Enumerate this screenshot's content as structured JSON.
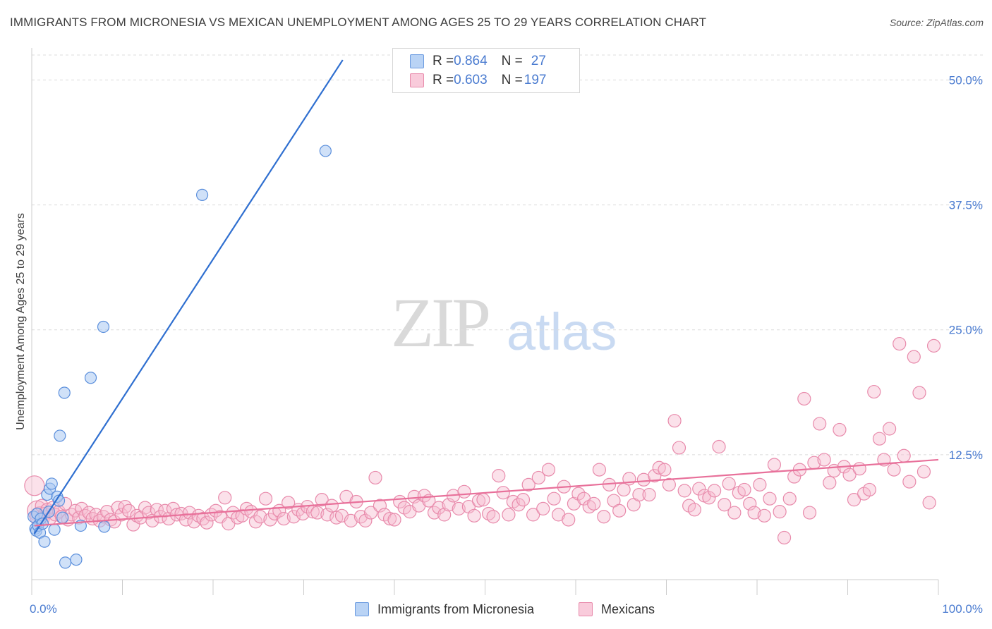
{
  "header": {
    "title": "IMMIGRANTS FROM MICRONESIA VS MEXICAN UNEMPLOYMENT AMONG AGES 25 TO 29 YEARS CORRELATION CHART",
    "source": "Source: ZipAtlas.com"
  },
  "watermark": {
    "zip": "ZIP",
    "atlas": "atlas"
  },
  "legend": {
    "rows": [
      {
        "r_label": "R = ",
        "r_value": "0.864",
        "n_label": "N = ",
        "n_value": "27",
        "color": "#a9c8f2",
        "stroke": "#6b9be0"
      },
      {
        "r_label": "R = ",
        "r_value": "0.603",
        "n_label": "N = ",
        "n_value": "197",
        "color": "#f7bcd0",
        "stroke": "#e88aab"
      }
    ]
  },
  "bottom_legend": {
    "series1": "Immigrants from Micronesia",
    "series2": "Mexicans"
  },
  "chart_data": {
    "type": "scatter",
    "title": "IMMIGRANTS FROM MICRONESIA VS MEXICAN UNEMPLOYMENT AMONG AGES 25 TO 29 YEARS CORRELATION CHART",
    "xlabel": "",
    "ylabel": "Unemployment Among Ages 25 to 29 years",
    "xlim": [
      0,
      100
    ],
    "ylim": [
      0,
      52.5
    ],
    "x_tick_labels": [
      "0.0%",
      "100.0%"
    ],
    "y_ticks": [
      12.5,
      25.0,
      37.5,
      50.0
    ],
    "y_tick_labels": [
      "12.5%",
      "25.0%",
      "37.5%",
      "50.0%"
    ],
    "grid": true,
    "series": [
      {
        "name": "Immigrants from Micronesia",
        "color": "#a9c8f2",
        "stroke": "#5b8fdc",
        "line_color": "#2f6fd0",
        "trend": {
          "x0": 0.3,
          "y0": 4.6,
          "x1": 34.3,
          "y1": 52.0
        },
        "points": [
          [
            0.2,
            6.3
          ],
          [
            0.4,
            5.1
          ],
          [
            0.5,
            4.9
          ],
          [
            0.6,
            6.6
          ],
          [
            0.7,
            5.4
          ],
          [
            0.9,
            4.7
          ],
          [
            1.0,
            6.1
          ],
          [
            1.2,
            5.6
          ],
          [
            1.4,
            3.8
          ],
          [
            1.7,
            8.5
          ],
          [
            1.9,
            6.8
          ],
          [
            2.0,
            9.1
          ],
          [
            2.2,
            9.6
          ],
          [
            2.5,
            5.0
          ],
          [
            2.8,
            8.3
          ],
          [
            3.0,
            7.9
          ],
          [
            3.1,
            14.4
          ],
          [
            3.4,
            6.2
          ],
          [
            3.6,
            18.7
          ],
          [
            3.7,
            1.7
          ],
          [
            4.9,
            2.0
          ],
          [
            5.4,
            5.4
          ],
          [
            6.5,
            20.2
          ],
          [
            7.9,
            25.3
          ],
          [
            8.0,
            5.3
          ],
          [
            18.8,
            38.5
          ],
          [
            32.4,
            42.9
          ]
        ]
      },
      {
        "name": "Mexicans",
        "color": "#f7bcd0",
        "stroke": "#e88aab",
        "line_color": "#e8709a",
        "trend": {
          "x0": 0.3,
          "y0": 5.4,
          "x1": 100,
          "y1": 12.0
        },
        "points": [
          [
            0.3,
            9.4
          ],
          [
            0.6,
            6.9
          ],
          [
            0.9,
            6.3
          ],
          [
            1.1,
            7.4
          ],
          [
            1.4,
            6.6
          ],
          [
            1.7,
            7.0
          ],
          [
            2.0,
            6.1
          ],
          [
            2.3,
            7.2
          ],
          [
            2.6,
            6.5
          ],
          [
            3.0,
            6.8
          ],
          [
            3.3,
            6.3
          ],
          [
            3.7,
            7.6
          ],
          [
            4.0,
            6.0
          ],
          [
            4.4,
            6.5
          ],
          [
            4.8,
            6.9
          ],
          [
            5.2,
            6.2
          ],
          [
            5.5,
            7.1
          ],
          [
            5.9,
            6.4
          ],
          [
            6.3,
            6.7
          ],
          [
            6.7,
            6.1
          ],
          [
            7.1,
            6.5
          ],
          [
            7.5,
            5.9
          ],
          [
            7.9,
            6.3
          ],
          [
            8.3,
            6.8
          ],
          [
            8.7,
            6.0
          ],
          [
            9.1,
            5.8
          ],
          [
            9.5,
            7.2
          ],
          [
            9.9,
            6.5
          ],
          [
            10.3,
            7.3
          ],
          [
            10.7,
            6.9
          ],
          [
            11.2,
            5.5
          ],
          [
            11.6,
            6.4
          ],
          [
            12.0,
            6.2
          ],
          [
            12.5,
            7.2
          ],
          [
            12.9,
            6.7
          ],
          [
            13.3,
            5.9
          ],
          [
            13.8,
            7.0
          ],
          [
            14.2,
            6.3
          ],
          [
            14.7,
            6.9
          ],
          [
            15.1,
            6.1
          ],
          [
            15.6,
            7.1
          ],
          [
            16.0,
            6.5
          ],
          [
            16.5,
            6.6
          ],
          [
            17.0,
            6.0
          ],
          [
            17.4,
            6.7
          ],
          [
            17.9,
            5.8
          ],
          [
            18.4,
            6.4
          ],
          [
            18.9,
            6.1
          ],
          [
            19.3,
            5.7
          ],
          [
            19.8,
            6.5
          ],
          [
            20.3,
            6.9
          ],
          [
            20.8,
            6.3
          ],
          [
            21.3,
            8.2
          ],
          [
            21.7,
            5.6
          ],
          [
            22.2,
            6.7
          ],
          [
            22.7,
            6.2
          ],
          [
            23.2,
            6.4
          ],
          [
            23.7,
            7.1
          ],
          [
            24.2,
            6.8
          ],
          [
            24.7,
            5.8
          ],
          [
            25.2,
            6.3
          ],
          [
            25.8,
            8.1
          ],
          [
            26.3,
            6.0
          ],
          [
            26.8,
            6.6
          ],
          [
            27.3,
            6.9
          ],
          [
            27.8,
            6.1
          ],
          [
            28.3,
            7.7
          ],
          [
            28.9,
            6.3
          ],
          [
            29.4,
            7.0
          ],
          [
            29.9,
            6.6
          ],
          [
            30.4,
            7.3
          ],
          [
            31.0,
            6.8
          ],
          [
            31.5,
            6.7
          ],
          [
            32.0,
            8.0
          ],
          [
            32.6,
            6.5
          ],
          [
            33.1,
            7.4
          ],
          [
            33.6,
            6.2
          ],
          [
            34.2,
            6.4
          ],
          [
            34.7,
            8.3
          ],
          [
            35.2,
            5.9
          ],
          [
            35.8,
            7.8
          ],
          [
            36.3,
            6.3
          ],
          [
            36.8,
            5.9
          ],
          [
            37.4,
            6.7
          ],
          [
            37.9,
            10.2
          ],
          [
            38.4,
            7.4
          ],
          [
            38.9,
            6.5
          ],
          [
            39.5,
            6.1
          ],
          [
            40.0,
            6.0
          ],
          [
            40.6,
            7.8
          ],
          [
            41.1,
            7.2
          ],
          [
            41.7,
            6.8
          ],
          [
            42.2,
            8.3
          ],
          [
            42.7,
            7.4
          ],
          [
            43.3,
            8.4
          ],
          [
            43.8,
            7.9
          ],
          [
            44.4,
            6.7
          ],
          [
            44.9,
            7.2
          ],
          [
            45.5,
            6.5
          ],
          [
            46.0,
            7.5
          ],
          [
            46.5,
            8.4
          ],
          [
            47.1,
            7.1
          ],
          [
            47.7,
            8.8
          ],
          [
            48.2,
            7.3
          ],
          [
            48.8,
            6.4
          ],
          [
            49.3,
            7.9
          ],
          [
            49.8,
            8.0
          ],
          [
            50.4,
            6.6
          ],
          [
            50.9,
            6.3
          ],
          [
            51.5,
            10.4
          ],
          [
            52.0,
            8.7
          ],
          [
            52.6,
            6.5
          ],
          [
            53.1,
            7.8
          ],
          [
            53.7,
            7.5
          ],
          [
            54.2,
            8.0
          ],
          [
            54.8,
            9.5
          ],
          [
            55.3,
            6.5
          ],
          [
            55.9,
            10.2
          ],
          [
            56.4,
            7.1
          ],
          [
            57.0,
            11.0
          ],
          [
            57.6,
            8.1
          ],
          [
            58.1,
            6.5
          ],
          [
            58.7,
            9.3
          ],
          [
            59.2,
            6.0
          ],
          [
            59.8,
            7.6
          ],
          [
            60.3,
            8.6
          ],
          [
            60.9,
            8.1
          ],
          [
            61.5,
            7.3
          ],
          [
            62.0,
            7.6
          ],
          [
            62.6,
            11.0
          ],
          [
            63.1,
            6.3
          ],
          [
            63.7,
            9.5
          ],
          [
            64.2,
            7.9
          ],
          [
            64.8,
            6.9
          ],
          [
            65.3,
            9.0
          ],
          [
            65.9,
            10.1
          ],
          [
            66.4,
            7.5
          ],
          [
            67.0,
            8.5
          ],
          [
            67.5,
            10.0
          ],
          [
            68.1,
            8.5
          ],
          [
            68.7,
            10.4
          ],
          [
            69.2,
            11.2
          ],
          [
            69.8,
            11.0
          ],
          [
            70.3,
            9.5
          ],
          [
            70.9,
            15.9
          ],
          [
            71.4,
            13.2
          ],
          [
            72.0,
            8.9
          ],
          [
            72.5,
            7.4
          ],
          [
            73.1,
            7.0
          ],
          [
            73.6,
            9.1
          ],
          [
            74.2,
            8.4
          ],
          [
            74.7,
            8.2
          ],
          [
            75.3,
            8.9
          ],
          [
            75.8,
            13.3
          ],
          [
            76.4,
            7.5
          ],
          [
            76.9,
            9.6
          ],
          [
            77.5,
            6.7
          ],
          [
            78.0,
            8.7
          ],
          [
            78.6,
            9.0
          ],
          [
            79.2,
            7.6
          ],
          [
            79.7,
            6.7
          ],
          [
            80.3,
            9.5
          ],
          [
            80.8,
            6.4
          ],
          [
            81.4,
            8.1
          ],
          [
            81.9,
            11.5
          ],
          [
            82.5,
            6.8
          ],
          [
            83.0,
            4.2
          ],
          [
            83.6,
            8.1
          ],
          [
            84.1,
            10.3
          ],
          [
            84.7,
            11.0
          ],
          [
            85.2,
            18.1
          ],
          [
            85.8,
            6.7
          ],
          [
            86.3,
            11.7
          ],
          [
            86.9,
            15.6
          ],
          [
            87.4,
            12.0
          ],
          [
            88.0,
            9.7
          ],
          [
            88.5,
            10.9
          ],
          [
            89.1,
            15.0
          ],
          [
            89.6,
            11.3
          ],
          [
            90.2,
            10.5
          ],
          [
            90.7,
            8.0
          ],
          [
            91.3,
            11.1
          ],
          [
            91.8,
            8.6
          ],
          [
            92.4,
            9.0
          ],
          [
            92.9,
            18.8
          ],
          [
            93.5,
            14.1
          ],
          [
            94.0,
            12.0
          ],
          [
            94.6,
            15.1
          ],
          [
            95.1,
            11.0
          ],
          [
            95.7,
            23.6
          ],
          [
            96.2,
            12.4
          ],
          [
            96.8,
            9.8
          ],
          [
            97.3,
            22.3
          ],
          [
            97.9,
            18.7
          ],
          [
            98.4,
            10.8
          ],
          [
            99.0,
            7.7
          ],
          [
            99.5,
            23.4
          ]
        ]
      }
    ]
  }
}
